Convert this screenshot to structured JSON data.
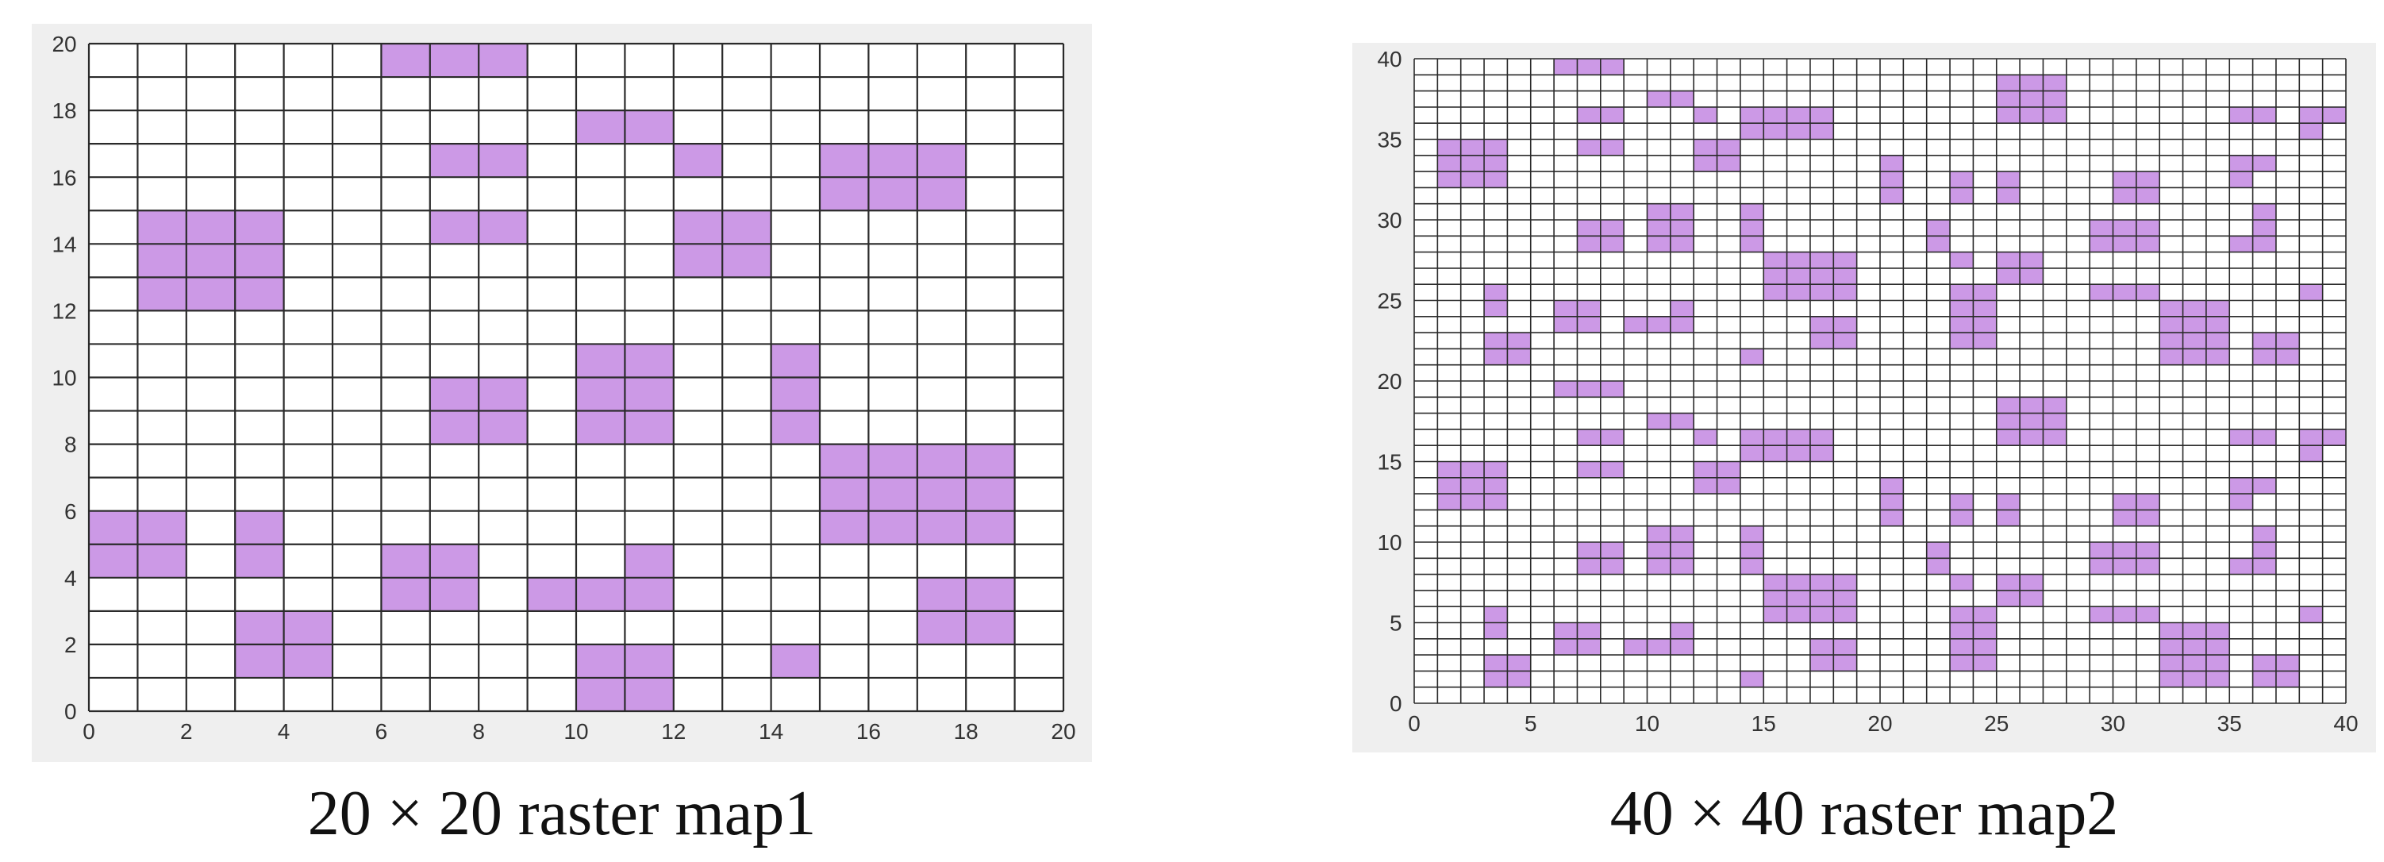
{
  "colors": {
    "obstacle": "#cc99e6",
    "free": "#ffffff",
    "grid": "#2a2a2a",
    "panel": "#efefef"
  },
  "map1": {
    "caption": "20 × 20 raster map1",
    "grid": {
      "cols": 20,
      "rows": 20
    },
    "axes": {
      "xlim": [
        0,
        20
      ],
      "ylim": [
        0,
        20
      ],
      "xticks": [
        0,
        2,
        4,
        6,
        8,
        10,
        12,
        14,
        16,
        18,
        20
      ],
      "yticks": [
        0,
        2,
        4,
        6,
        8,
        10,
        12,
        14,
        16,
        18,
        20
      ]
    },
    "obstacles": [
      [
        6,
        19
      ],
      [
        7,
        19
      ],
      [
        8,
        19
      ],
      [
        10,
        17
      ],
      [
        11,
        17
      ],
      [
        7,
        16
      ],
      [
        8,
        16
      ],
      [
        12,
        16
      ],
      [
        15,
        16
      ],
      [
        16,
        16
      ],
      [
        17,
        16
      ],
      [
        15,
        15
      ],
      [
        16,
        15
      ],
      [
        17,
        15
      ],
      [
        1,
        14
      ],
      [
        2,
        14
      ],
      [
        3,
        14
      ],
      [
        7,
        14
      ],
      [
        8,
        14
      ],
      [
        12,
        14
      ],
      [
        13,
        14
      ],
      [
        1,
        13
      ],
      [
        2,
        13
      ],
      [
        3,
        13
      ],
      [
        12,
        13
      ],
      [
        13,
        13
      ],
      [
        1,
        12
      ],
      [
        2,
        12
      ],
      [
        3,
        12
      ],
      [
        10,
        10
      ],
      [
        11,
        10
      ],
      [
        14,
        10
      ],
      [
        7,
        9
      ],
      [
        8,
        9
      ],
      [
        10,
        9
      ],
      [
        11,
        9
      ],
      [
        14,
        9
      ],
      [
        7,
        8
      ],
      [
        8,
        8
      ],
      [
        10,
        8
      ],
      [
        11,
        8
      ],
      [
        14,
        8
      ],
      [
        15,
        7
      ],
      [
        16,
        7
      ],
      [
        17,
        7
      ],
      [
        18,
        7
      ],
      [
        15,
        6
      ],
      [
        16,
        6
      ],
      [
        17,
        6
      ],
      [
        18,
        6
      ],
      [
        0,
        5
      ],
      [
        1,
        5
      ],
      [
        3,
        5
      ],
      [
        15,
        5
      ],
      [
        16,
        5
      ],
      [
        17,
        5
      ],
      [
        18,
        5
      ],
      [
        0,
        4
      ],
      [
        1,
        4
      ],
      [
        3,
        4
      ],
      [
        6,
        4
      ],
      [
        7,
        4
      ],
      [
        11,
        4
      ],
      [
        6,
        3
      ],
      [
        7,
        3
      ],
      [
        9,
        3
      ],
      [
        10,
        3
      ],
      [
        11,
        3
      ],
      [
        17,
        3
      ],
      [
        18,
        3
      ],
      [
        3,
        2
      ],
      [
        4,
        2
      ],
      [
        17,
        2
      ],
      [
        18,
        2
      ],
      [
        3,
        1
      ],
      [
        4,
        1
      ],
      [
        14,
        1
      ],
      [
        10,
        1
      ],
      [
        11,
        1
      ],
      [
        10,
        0
      ],
      [
        11,
        0
      ]
    ]
  },
  "map2": {
    "caption": "40 × 40 raster map2",
    "grid": {
      "cols": 40,
      "rows": 40
    },
    "axes": {
      "xlim": [
        0,
        40
      ],
      "ylim": [
        0,
        40
      ],
      "xticks": [
        0,
        5,
        10,
        15,
        20,
        25,
        30,
        35,
        40
      ],
      "yticks": [
        0,
        5,
        10,
        15,
        20,
        25,
        30,
        35,
        40
      ]
    },
    "obstacles": [
      [
        6,
        39
      ],
      [
        7,
        39
      ],
      [
        8,
        39
      ],
      [
        25,
        38
      ],
      [
        26,
        38
      ],
      [
        27,
        38
      ],
      [
        25,
        37
      ],
      [
        26,
        37
      ],
      [
        27,
        37
      ],
      [
        25,
        36
      ],
      [
        26,
        36
      ],
      [
        27,
        36
      ],
      [
        10,
        37
      ],
      [
        11,
        37
      ],
      [
        7,
        36
      ],
      [
        8,
        36
      ],
      [
        12,
        36
      ],
      [
        14,
        36
      ],
      [
        15,
        36
      ],
      [
        16,
        36
      ],
      [
        17,
        36
      ],
      [
        35,
        36
      ],
      [
        36,
        36
      ],
      [
        38,
        36
      ],
      [
        39,
        36
      ],
      [
        14,
        35
      ],
      [
        15,
        35
      ],
      [
        16,
        35
      ],
      [
        17,
        35
      ],
      [
        38,
        35
      ],
      [
        1,
        34
      ],
      [
        2,
        34
      ],
      [
        3,
        34
      ],
      [
        7,
        34
      ],
      [
        8,
        34
      ],
      [
        12,
        34
      ],
      [
        13,
        34
      ],
      [
        1,
        33
      ],
      [
        2,
        33
      ],
      [
        3,
        33
      ],
      [
        12,
        33
      ],
      [
        13,
        33
      ],
      [
        20,
        33
      ],
      [
        35,
        33
      ],
      [
        36,
        33
      ],
      [
        1,
        32
      ],
      [
        2,
        32
      ],
      [
        3,
        32
      ],
      [
        20,
        32
      ],
      [
        23,
        32
      ],
      [
        25,
        32
      ],
      [
        30,
        32
      ],
      [
        31,
        32
      ],
      [
        35,
        32
      ],
      [
        20,
        31
      ],
      [
        23,
        31
      ],
      [
        25,
        31
      ],
      [
        30,
        31
      ],
      [
        31,
        31
      ],
      [
        10,
        30
      ],
      [
        11,
        30
      ],
      [
        14,
        30
      ],
      [
        36,
        30
      ],
      [
        7,
        29
      ],
      [
        8,
        29
      ],
      [
        10,
        29
      ],
      [
        11,
        29
      ],
      [
        14,
        29
      ],
      [
        22,
        29
      ],
      [
        29,
        29
      ],
      [
        30,
        29
      ],
      [
        31,
        29
      ],
      [
        36,
        29
      ],
      [
        7,
        28
      ],
      [
        8,
        28
      ],
      [
        10,
        28
      ],
      [
        11,
        28
      ],
      [
        14,
        28
      ],
      [
        22,
        28
      ],
      [
        29,
        28
      ],
      [
        30,
        28
      ],
      [
        31,
        28
      ],
      [
        35,
        28
      ],
      [
        36,
        28
      ],
      [
        15,
        27
      ],
      [
        16,
        27
      ],
      [
        17,
        27
      ],
      [
        18,
        27
      ],
      [
        23,
        27
      ],
      [
        25,
        27
      ],
      [
        26,
        27
      ],
      [
        15,
        26
      ],
      [
        16,
        26
      ],
      [
        17,
        26
      ],
      [
        18,
        26
      ],
      [
        25,
        26
      ],
      [
        26,
        26
      ],
      [
        3,
        25
      ],
      [
        15,
        25
      ],
      [
        16,
        25
      ],
      [
        17,
        25
      ],
      [
        18,
        25
      ],
      [
        23,
        25
      ],
      [
        24,
        25
      ],
      [
        29,
        25
      ],
      [
        30,
        25
      ],
      [
        31,
        25
      ],
      [
        38,
        25
      ],
      [
        3,
        24
      ],
      [
        6,
        24
      ],
      [
        7,
        24
      ],
      [
        11,
        24
      ],
      [
        23,
        24
      ],
      [
        24,
        24
      ],
      [
        32,
        24
      ],
      [
        33,
        24
      ],
      [
        34,
        24
      ],
      [
        6,
        23
      ],
      [
        7,
        23
      ],
      [
        9,
        23
      ],
      [
        10,
        23
      ],
      [
        11,
        23
      ],
      [
        17,
        23
      ],
      [
        18,
        23
      ],
      [
        23,
        23
      ],
      [
        24,
        23
      ],
      [
        32,
        23
      ],
      [
        33,
        23
      ],
      [
        34,
        23
      ],
      [
        3,
        22
      ],
      [
        4,
        22
      ],
      [
        17,
        22
      ],
      [
        18,
        22
      ],
      [
        23,
        22
      ],
      [
        24,
        22
      ],
      [
        32,
        22
      ],
      [
        33,
        22
      ],
      [
        34,
        22
      ],
      [
        36,
        22
      ],
      [
        37,
        22
      ],
      [
        3,
        21
      ],
      [
        4,
        21
      ],
      [
        14,
        21
      ],
      [
        32,
        21
      ],
      [
        33,
        21
      ],
      [
        34,
        21
      ],
      [
        36,
        21
      ],
      [
        37,
        21
      ],
      [
        6,
        19
      ],
      [
        7,
        19
      ],
      [
        8,
        19
      ],
      [
        25,
        18
      ],
      [
        26,
        18
      ],
      [
        27,
        18
      ],
      [
        25,
        17
      ],
      [
        26,
        17
      ],
      [
        27,
        17
      ],
      [
        25,
        16
      ],
      [
        26,
        16
      ],
      [
        27,
        16
      ],
      [
        10,
        17
      ],
      [
        11,
        17
      ],
      [
        7,
        16
      ],
      [
        8,
        16
      ],
      [
        12,
        16
      ],
      [
        14,
        16
      ],
      [
        15,
        16
      ],
      [
        16,
        16
      ],
      [
        17,
        16
      ],
      [
        35,
        16
      ],
      [
        36,
        16
      ],
      [
        38,
        16
      ],
      [
        39,
        16
      ],
      [
        14,
        15
      ],
      [
        15,
        15
      ],
      [
        16,
        15
      ],
      [
        17,
        15
      ],
      [
        38,
        15
      ],
      [
        1,
        14
      ],
      [
        2,
        14
      ],
      [
        3,
        14
      ],
      [
        7,
        14
      ],
      [
        8,
        14
      ],
      [
        12,
        14
      ],
      [
        13,
        14
      ],
      [
        1,
        13
      ],
      [
        2,
        13
      ],
      [
        3,
        13
      ],
      [
        12,
        13
      ],
      [
        13,
        13
      ],
      [
        20,
        13
      ],
      [
        35,
        13
      ],
      [
        36,
        13
      ],
      [
        1,
        12
      ],
      [
        2,
        12
      ],
      [
        3,
        12
      ],
      [
        20,
        12
      ],
      [
        23,
        12
      ],
      [
        25,
        12
      ],
      [
        30,
        12
      ],
      [
        31,
        12
      ],
      [
        35,
        12
      ],
      [
        20,
        11
      ],
      [
        23,
        11
      ],
      [
        25,
        11
      ],
      [
        30,
        11
      ],
      [
        31,
        11
      ],
      [
        10,
        10
      ],
      [
        11,
        10
      ],
      [
        14,
        10
      ],
      [
        36,
        10
      ],
      [
        7,
        9
      ],
      [
        8,
        9
      ],
      [
        10,
        9
      ],
      [
        11,
        9
      ],
      [
        14,
        9
      ],
      [
        22,
        9
      ],
      [
        29,
        9
      ],
      [
        30,
        9
      ],
      [
        31,
        9
      ],
      [
        36,
        9
      ],
      [
        7,
        8
      ],
      [
        8,
        8
      ],
      [
        10,
        8
      ],
      [
        11,
        8
      ],
      [
        14,
        8
      ],
      [
        22,
        8
      ],
      [
        29,
        8
      ],
      [
        30,
        8
      ],
      [
        31,
        8
      ],
      [
        35,
        8
      ],
      [
        36,
        8
      ],
      [
        15,
        7
      ],
      [
        16,
        7
      ],
      [
        17,
        7
      ],
      [
        18,
        7
      ],
      [
        23,
        7
      ],
      [
        25,
        7
      ],
      [
        26,
        7
      ],
      [
        15,
        6
      ],
      [
        16,
        6
      ],
      [
        17,
        6
      ],
      [
        18,
        6
      ],
      [
        25,
        6
      ],
      [
        26,
        6
      ],
      [
        3,
        5
      ],
      [
        15,
        5
      ],
      [
        16,
        5
      ],
      [
        17,
        5
      ],
      [
        18,
        5
      ],
      [
        23,
        5
      ],
      [
        24,
        5
      ],
      [
        29,
        5
      ],
      [
        30,
        5
      ],
      [
        31,
        5
      ],
      [
        38,
        5
      ],
      [
        3,
        4
      ],
      [
        6,
        4
      ],
      [
        7,
        4
      ],
      [
        11,
        4
      ],
      [
        23,
        4
      ],
      [
        24,
        4
      ],
      [
        32,
        4
      ],
      [
        33,
        4
      ],
      [
        34,
        4
      ],
      [
        6,
        3
      ],
      [
        7,
        3
      ],
      [
        9,
        3
      ],
      [
        10,
        3
      ],
      [
        11,
        3
      ],
      [
        17,
        3
      ],
      [
        18,
        3
      ],
      [
        23,
        3
      ],
      [
        24,
        3
      ],
      [
        32,
        3
      ],
      [
        33,
        3
      ],
      [
        34,
        3
      ],
      [
        3,
        2
      ],
      [
        4,
        2
      ],
      [
        17,
        2
      ],
      [
        18,
        2
      ],
      [
        23,
        2
      ],
      [
        24,
        2
      ],
      [
        32,
        2
      ],
      [
        33,
        2
      ],
      [
        34,
        2
      ],
      [
        36,
        2
      ],
      [
        37,
        2
      ],
      [
        3,
        1
      ],
      [
        4,
        1
      ],
      [
        14,
        1
      ],
      [
        32,
        1
      ],
      [
        33,
        1
      ],
      [
        34,
        1
      ],
      [
        36,
        1
      ],
      [
        37,
        1
      ]
    ]
  }
}
